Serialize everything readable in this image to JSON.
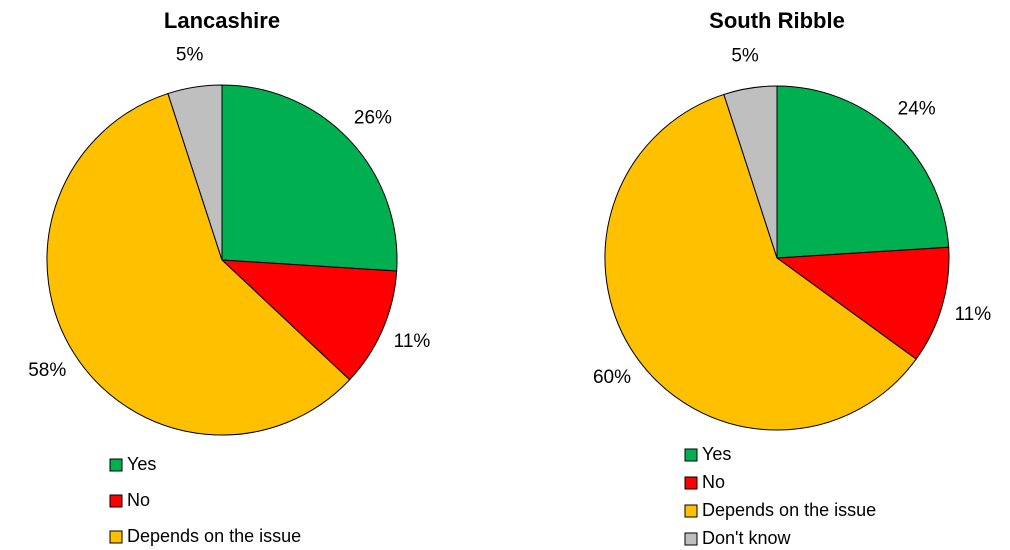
{
  "chart_data": [
    {
      "type": "pie",
      "title": "Lancashire",
      "categories": [
        "Yes",
        "No",
        "Depends on the issue",
        null
      ],
      "values": [
        26,
        11,
        58,
        5
      ],
      "value_labels": [
        "26%",
        "11%",
        "58%",
        "5%"
      ],
      "colors": [
        "#00b050",
        "#ff0000",
        "#ffc000",
        "#bfbfbf"
      ]
    },
    {
      "type": "pie",
      "title": "South Ribble",
      "categories": [
        "Yes",
        "No",
        "Depends on the issue",
        "Don't know"
      ],
      "values": [
        24,
        11,
        60,
        5
      ],
      "value_labels": [
        "24%",
        "11%",
        "60%",
        "5%"
      ],
      "colors": [
        "#00b050",
        "#ff0000",
        "#ffc000",
        "#bfbfbf"
      ]
    }
  ]
}
